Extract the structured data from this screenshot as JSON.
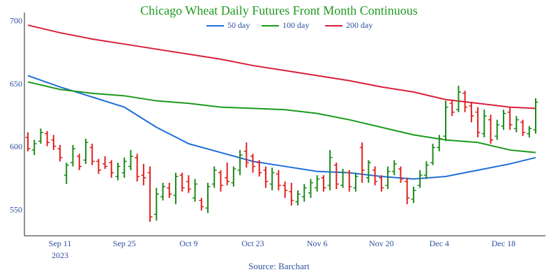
{
  "chart_data": {
    "type": "ohlc",
    "title": "Chicago Wheat Daily Futures Front Month Continuous",
    "source": "Source: Barchart",
    "title_color": "#1f9a1f",
    "up_color": "#1a8a1a",
    "down_color": "#e0201e",
    "ylim": [
      530,
      707
    ],
    "yticks": [
      550,
      600,
      650,
      700
    ],
    "x": [
      "2023-09-01",
      "2023-09-05",
      "2023-09-06",
      "2023-09-07",
      "2023-09-08",
      "2023-09-11",
      "2023-09-12",
      "2023-09-13",
      "2023-09-14",
      "2023-09-15",
      "2023-09-18",
      "2023-09-19",
      "2023-09-20",
      "2023-09-21",
      "2023-09-22",
      "2023-09-25",
      "2023-09-26",
      "2023-09-27",
      "2023-09-28",
      "2023-09-29",
      "2023-10-02",
      "2023-10-03",
      "2023-10-04",
      "2023-10-05",
      "2023-10-06",
      "2023-10-09",
      "2023-10-10",
      "2023-10-11",
      "2023-10-12",
      "2023-10-13",
      "2023-10-16",
      "2023-10-17",
      "2023-10-18",
      "2023-10-19",
      "2023-10-20",
      "2023-10-23",
      "2023-10-24",
      "2023-10-25",
      "2023-10-26",
      "2023-10-27",
      "2023-10-30",
      "2023-10-31",
      "2023-11-01",
      "2023-11-02",
      "2023-11-03",
      "2023-11-06",
      "2023-11-07",
      "2023-11-08",
      "2023-11-09",
      "2023-11-10",
      "2023-11-13",
      "2023-11-14",
      "2023-11-15",
      "2023-11-16",
      "2023-11-17",
      "2023-11-20",
      "2023-11-21",
      "2023-11-22",
      "2023-11-24",
      "2023-11-27",
      "2023-11-28",
      "2023-11-29",
      "2023-11-30",
      "2023-12-01",
      "2023-12-04",
      "2023-12-05",
      "2023-12-06",
      "2023-12-07",
      "2023-12-08",
      "2023-12-11",
      "2023-12-12",
      "2023-12-13",
      "2023-12-14",
      "2023-12-15",
      "2023-12-18",
      "2023-12-19",
      "2023-12-20",
      "2023-12-21",
      "2023-12-22",
      "2023-12-26"
    ],
    "xticks": [
      {
        "value": "2023-09-11",
        "label": "Sep 11",
        "sublabel": "2023"
      },
      {
        "value": "2023-09-25",
        "label": "Sep 25"
      },
      {
        "value": "2023-10-09",
        "label": "Oct 9"
      },
      {
        "value": "2023-10-23",
        "label": "Oct 23"
      },
      {
        "value": "2023-11-06",
        "label": "Nov 6"
      },
      {
        "value": "2023-11-20",
        "label": "Nov 20"
      },
      {
        "value": "2023-12-04",
        "label": "Dec 4"
      },
      {
        "value": "2023-12-18",
        "label": "Dec 18"
      }
    ],
    "ohlc": {
      "open": [
        608,
        598,
        605,
        611,
        606,
        599,
        578,
        588,
        593,
        590,
        600,
        589,
        587,
        588,
        577,
        580,
        585,
        592,
        578,
        580,
        547,
        561,
        568,
        562,
        578,
        573,
        560,
        558,
        552,
        571,
        580,
        576,
        572,
        582,
        597,
        593,
        588,
        582,
        571,
        579,
        570,
        565,
        557,
        561,
        564,
        568,
        576,
        570,
        586,
        570,
        580,
        568,
        600,
        576,
        582,
        576,
        570,
        581,
        583,
        573,
        559,
        570,
        578,
        588,
        600,
        609,
        635,
        630,
        643,
        633,
        628,
        611,
        622,
        609,
        617,
        628,
        615,
        620,
        611,
        614
      ],
      "high": [
        612,
        606,
        615,
        613,
        610,
        602,
        588,
        602,
        595,
        607,
        603,
        591,
        593,
        590,
        588,
        592,
        598,
        595,
        587,
        585,
        568,
        572,
        572,
        580,
        580,
        578,
        575,
        560,
        572,
        585,
        582,
        588,
        585,
        598,
        604,
        595,
        590,
        585,
        584,
        582,
        573,
        572,
        566,
        571,
        575,
        578,
        578,
        598,
        588,
        583,
        582,
        580,
        604,
        590,
        585,
        578,
        585,
        590,
        585,
        576,
        569,
        582,
        589,
        603,
        610,
        637,
        638,
        649,
        645,
        636,
        632,
        630,
        626,
        622,
        630,
        632,
        625,
        622,
        617,
        639
      ],
      "low": [
        597,
        594,
        603,
        601,
        598,
        589,
        571,
        585,
        582,
        587,
        586,
        579,
        583,
        576,
        574,
        576,
        582,
        573,
        570,
        541,
        542,
        558,
        560,
        555,
        565,
        564,
        557,
        550,
        548,
        568,
        565,
        570,
        569,
        578,
        584,
        580,
        577,
        568,
        566,
        566,
        560,
        554,
        554,
        557,
        560,
        565,
        565,
        566,
        567,
        568,
        565,
        565,
        572,
        572,
        570,
        565,
        567,
        578,
        572,
        555,
        556,
        568,
        575,
        586,
        597,
        605,
        625,
        628,
        628,
        620,
        608,
        608,
        603,
        606,
        614,
        614,
        612,
        609,
        608,
        611
      ],
      "close": [
        599,
        603,
        612,
        604,
        601,
        592,
        586,
        599,
        585,
        604,
        589,
        582,
        585,
        580,
        585,
        589,
        593,
        577,
        576,
        545,
        563,
        569,
        563,
        577,
        568,
        567,
        571,
        553,
        569,
        582,
        570,
        573,
        583,
        594,
        588,
        585,
        580,
        573,
        580,
        570,
        566,
        558,
        563,
        568,
        572,
        575,
        568,
        592,
        571,
        580,
        569,
        577,
        582,
        588,
        573,
        568,
        581,
        587,
        575,
        560,
        566,
        578,
        586,
        600,
        607,
        632,
        628,
        644,
        632,
        625,
        612,
        625,
        606,
        618,
        627,
        618,
        622,
        612,
        615,
        636
      ]
    },
    "series": [
      {
        "name": "50 day",
        "color": "#1f6fd8",
        "x": [
          "2023-09-01",
          "2023-09-11",
          "2023-09-18",
          "2023-09-25",
          "2023-10-02",
          "2023-10-09",
          "2023-10-16",
          "2023-10-23",
          "2023-10-30",
          "2023-11-06",
          "2023-11-13",
          "2023-11-20",
          "2023-11-28",
          "2023-12-05",
          "2023-12-12",
          "2023-12-19",
          "2023-12-26"
        ],
        "values": [
          657,
          648,
          640,
          632,
          616,
          603,
          596,
          589,
          585,
          581,
          580,
          577,
          575,
          577,
          582,
          587,
          592
        ]
      },
      {
        "name": "100 day",
        "color": "#1a9a1a",
        "x": [
          "2023-09-01",
          "2023-09-11",
          "2023-09-18",
          "2023-09-25",
          "2023-10-02",
          "2023-10-09",
          "2023-10-16",
          "2023-10-23",
          "2023-10-30",
          "2023-11-06",
          "2023-11-13",
          "2023-11-20",
          "2023-11-28",
          "2023-12-05",
          "2023-12-12",
          "2023-12-19",
          "2023-12-26"
        ],
        "values": [
          652,
          646,
          643,
          641,
          637,
          635,
          632,
          631,
          630,
          627,
          622,
          616,
          610,
          606,
          604,
          598,
          596
        ]
      },
      {
        "name": "200 day",
        "color": "#d8203c",
        "x": [
          "2023-09-01",
          "2023-09-11",
          "2023-09-18",
          "2023-09-25",
          "2023-10-02",
          "2023-10-09",
          "2023-10-16",
          "2023-10-23",
          "2023-10-30",
          "2023-11-06",
          "2023-11-13",
          "2023-11-20",
          "2023-11-28",
          "2023-12-05",
          "2023-12-12",
          "2023-12-19",
          "2023-12-26"
        ],
        "values": [
          697,
          691,
          686,
          682,
          678,
          674,
          670,
          665,
          661,
          657,
          653,
          648,
          644,
          638,
          635,
          632,
          631
        ]
      }
    ]
  }
}
